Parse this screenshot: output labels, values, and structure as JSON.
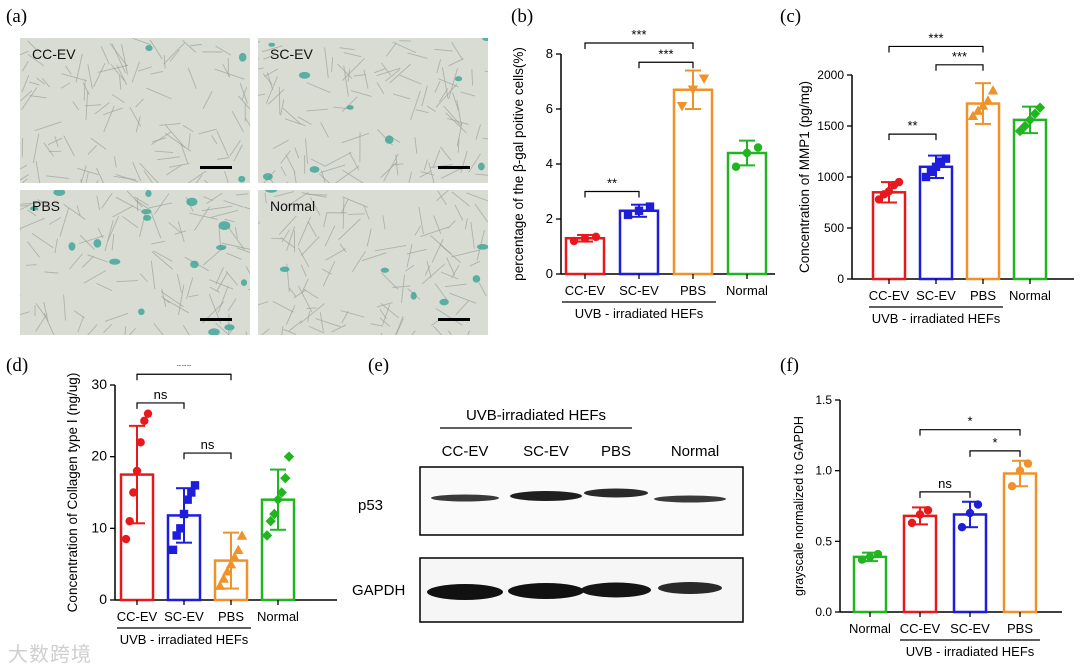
{
  "panels": {
    "a": {
      "letter": "(a)"
    },
    "b": {
      "letter": "(b)"
    },
    "c": {
      "letter": "(c)"
    },
    "d": {
      "letter": "(d)"
    },
    "e": {
      "letter": "(e)"
    },
    "f": {
      "letter": "(f)"
    }
  },
  "micrographs": [
    {
      "label": "CC-EV"
    },
    {
      "label": "SC-EV"
    },
    {
      "label": "PBS"
    },
    {
      "label": "Normal"
    }
  ],
  "blot": {
    "group_label": "UVB-irradiated HEFs",
    "lanes": [
      "CC-EV",
      "SC-EV",
      "PBS",
      "Normal"
    ],
    "rows": [
      {
        "label": "p53"
      },
      {
        "label": "GAPDH"
      }
    ]
  },
  "watermark": "大数跨境",
  "colors": {
    "cc_ev": "#e8191c",
    "sc_ev": "#1d1ddb",
    "pbs": "#f0922b",
    "normal": "#21b521"
  },
  "chart_data": [
    {
      "id": "b",
      "type": "bar",
      "ylabel": "percentage of the β-gal poitive cells(%)",
      "categories": [
        "CC-EV",
        "SC-EV",
        "PBS",
        "Normal"
      ],
      "group_label": "UVB - irradiated HEFs",
      "ylim": [
        0,
        8
      ],
      "yticks": [
        0,
        2,
        4,
        6,
        8
      ],
      "values": [
        1.3,
        2.3,
        6.7,
        4.4
      ],
      "errors": [
        0.12,
        0.22,
        0.7,
        0.45
      ],
      "points": [
        [
          1.2,
          1.3,
          1.35
        ],
        [
          2.15,
          2.3,
          2.45
        ],
        [
          6.1,
          6.7,
          7.1
        ],
        [
          3.9,
          4.4,
          4.6
        ]
      ],
      "markers": [
        "circle",
        "square",
        "triangle-down",
        "circle"
      ],
      "comparisons": [
        {
          "from": 0,
          "to": 1,
          "label": "**",
          "y": 3.0
        },
        {
          "from": 1,
          "to": 2,
          "label": "***",
          "y": 7.7
        },
        {
          "from": 0,
          "to": 2,
          "label": "***",
          "y": 8.4
        }
      ]
    },
    {
      "id": "c",
      "type": "bar",
      "ylabel": "Concentration of MMP1 (pg/mg)",
      "categories": [
        "CC-EV",
        "SC-EV",
        "PBS",
        "Normal"
      ],
      "group_label": "UVB - irradiated HEFs",
      "ylim": [
        0,
        2000
      ],
      "yticks": [
        0,
        500,
        1000,
        1500,
        2000
      ],
      "values": [
        850,
        1100,
        1720,
        1560
      ],
      "errors": [
        100,
        110,
        200,
        130
      ],
      "points": [
        [
          780,
          830,
          860,
          920,
          950
        ],
        [
          1000,
          1050,
          1100,
          1150,
          1180
        ],
        [
          1600,
          1650,
          1700,
          1750,
          1850
        ],
        [
          1450,
          1500,
          1560,
          1620,
          1680
        ]
      ],
      "markers": [
        "circle",
        "square",
        "triangle-up",
        "diamond"
      ],
      "comparisons": [
        {
          "from": 0,
          "to": 1,
          "label": "**",
          "y": 1420
        },
        {
          "from": 1,
          "to": 2,
          "label": "***",
          "y": 2100
        },
        {
          "from": 0,
          "to": 2,
          "label": "***",
          "y": 2280
        }
      ]
    },
    {
      "id": "d",
      "type": "bar",
      "ylabel": "Concentration of Collagen type Ⅰ (ng/ug)",
      "categories": [
        "CC-EV",
        "SC-EV",
        "PBS",
        "Normal"
      ],
      "group_label": "UVB - irradiated HEFs",
      "ylim": [
        0,
        30
      ],
      "yticks": [
        0,
        10,
        20,
        30
      ],
      "values": [
        17.5,
        11.8,
        5.5,
        14.0
      ],
      "errors": [
        6.8,
        3.8,
        3.9,
        4.2
      ],
      "points": [
        [
          8.5,
          11,
          15,
          18,
          22,
          25,
          26
        ],
        [
          7,
          9,
          10,
          12,
          14,
          15,
          16
        ],
        [
          2,
          3,
          4,
          5,
          6,
          7,
          9
        ],
        [
          9,
          11,
          12,
          14,
          15,
          17,
          20
        ]
      ],
      "markers": [
        "circle",
        "square",
        "triangle-up",
        "diamond"
      ],
      "comparisons": [
        {
          "from": 0,
          "to": 1,
          "label": "ns",
          "y": 27.5
        },
        {
          "from": 1,
          "to": 2,
          "label": "ns",
          "y": 20.5
        },
        {
          "from": 0,
          "to": 2,
          "label": "***",
          "y": 31.5
        }
      ]
    },
    {
      "id": "f",
      "type": "bar",
      "ylabel": "grayscale normalized to GAPDH",
      "categories": [
        "Normal",
        "CC-EV",
        "SC-EV",
        "PBS"
      ],
      "group_label": "UVB - irradiated HEFs",
      "group_start": 1,
      "ylim": [
        0,
        1.5
      ],
      "yticks": [
        0.0,
        0.5,
        1.0,
        1.5
      ],
      "ytick_labels": [
        "0.0",
        "0.5",
        "1.0",
        "1.5"
      ],
      "values": [
        0.39,
        0.68,
        0.69,
        0.98
      ],
      "errors": [
        0.03,
        0.06,
        0.09,
        0.09
      ],
      "points": [
        [
          0.37,
          0.39,
          0.41
        ],
        [
          0.63,
          0.69,
          0.72
        ],
        [
          0.6,
          0.7,
          0.76
        ],
        [
          0.89,
          1.0,
          1.05
        ]
      ],
      "markers": [
        "circle",
        "circle",
        "circle",
        "circle"
      ],
      "bar_colors": [
        "normal",
        "cc_ev",
        "sc_ev",
        "pbs"
      ],
      "comparisons": [
        {
          "from": 1,
          "to": 2,
          "label": "ns",
          "y": 0.85
        },
        {
          "from": 2,
          "to": 3,
          "label": "*",
          "y": 1.14
        },
        {
          "from": 1,
          "to": 3,
          "label": "*",
          "y": 1.29
        }
      ]
    }
  ]
}
